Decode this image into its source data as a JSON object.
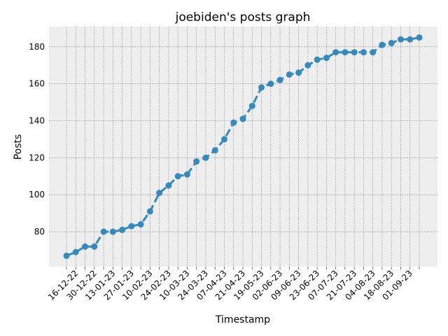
{
  "chart_data": {
    "type": "line",
    "title": "joebiden's posts graph",
    "x_label": "Timestamp",
    "y_label": "Posts",
    "categories": [
      null,
      "16-12-22",
      null,
      "30-12-22",
      null,
      "13-01-23",
      null,
      "27-01-23",
      null,
      "10-02-23",
      null,
      "24-02-23",
      null,
      "10-03-23",
      null,
      "24-03-23",
      null,
      "07-04-23",
      null,
      "21-04-23",
      null,
      "19-05-23",
      null,
      "02-06-23",
      null,
      "09-06-23",
      null,
      "23-06-23",
      null,
      "07-07-23",
      null,
      "21-07-23",
      null,
      "04-08-23",
      null,
      "18-08-23",
      null,
      "01-09-23",
      null
    ],
    "series": [
      {
        "name": "Posts",
        "color": "#348abd",
        "values": [
          67,
          69,
          72,
          72,
          80,
          80,
          81,
          83,
          84,
          91,
          101,
          105,
          110,
          111,
          118,
          120,
          124,
          130,
          139,
          141,
          148,
          158,
          160,
          162,
          165,
          166,
          170,
          173,
          174,
          177,
          177,
          177,
          177,
          177,
          181,
          182,
          184,
          184,
          185
        ]
      }
    ],
    "ylim": [
      61.1,
      190.9
    ],
    "yticks": [
      80,
      100,
      120,
      140,
      160,
      180
    ],
    "grid": true
  }
}
